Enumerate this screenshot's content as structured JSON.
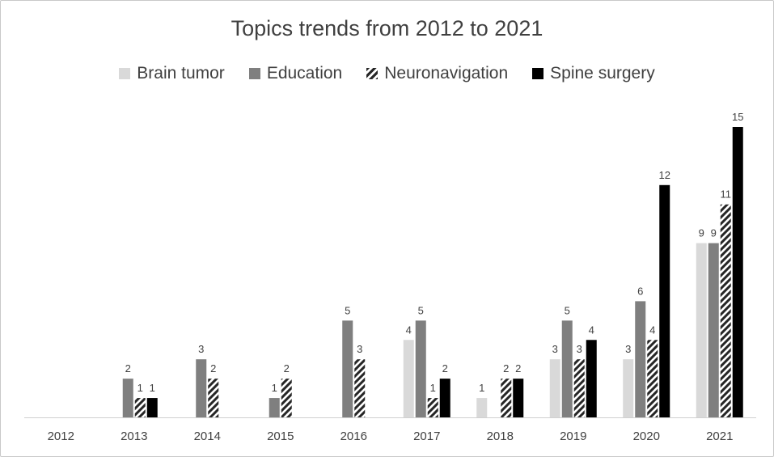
{
  "chart_data": {
    "type": "bar",
    "title": "Topics trends from 2012 to 2021",
    "categories": [
      "2012",
      "2013",
      "2014",
      "2015",
      "2016",
      "2017",
      "2018",
      "2019",
      "2020",
      "2021"
    ],
    "series": [
      {
        "name": "Brain tumor",
        "values": [
          0,
          0,
          0,
          0,
          0,
          4,
          1,
          3,
          3,
          9
        ],
        "color": "#d9d9d9",
        "pattern": "solid"
      },
      {
        "name": "Education",
        "values": [
          0,
          2,
          3,
          1,
          5,
          5,
          0,
          5,
          6,
          9
        ],
        "color": "#7f7f7f",
        "pattern": "solid"
      },
      {
        "name": "Neuronavigation",
        "values": [
          0,
          1,
          2,
          2,
          3,
          1,
          2,
          3,
          4,
          11
        ],
        "color": "#262626",
        "pattern": "diagonal-stripes"
      },
      {
        "name": "Spine surgery",
        "values": [
          0,
          1,
          0,
          0,
          0,
          2,
          2,
          4,
          12,
          15
        ],
        "color": "#000000",
        "pattern": "solid"
      }
    ],
    "ylim": [
      0,
      15
    ],
    "grid": false,
    "legend_position": "top",
    "data_labels": true,
    "xlabel": "",
    "ylabel": ""
  }
}
